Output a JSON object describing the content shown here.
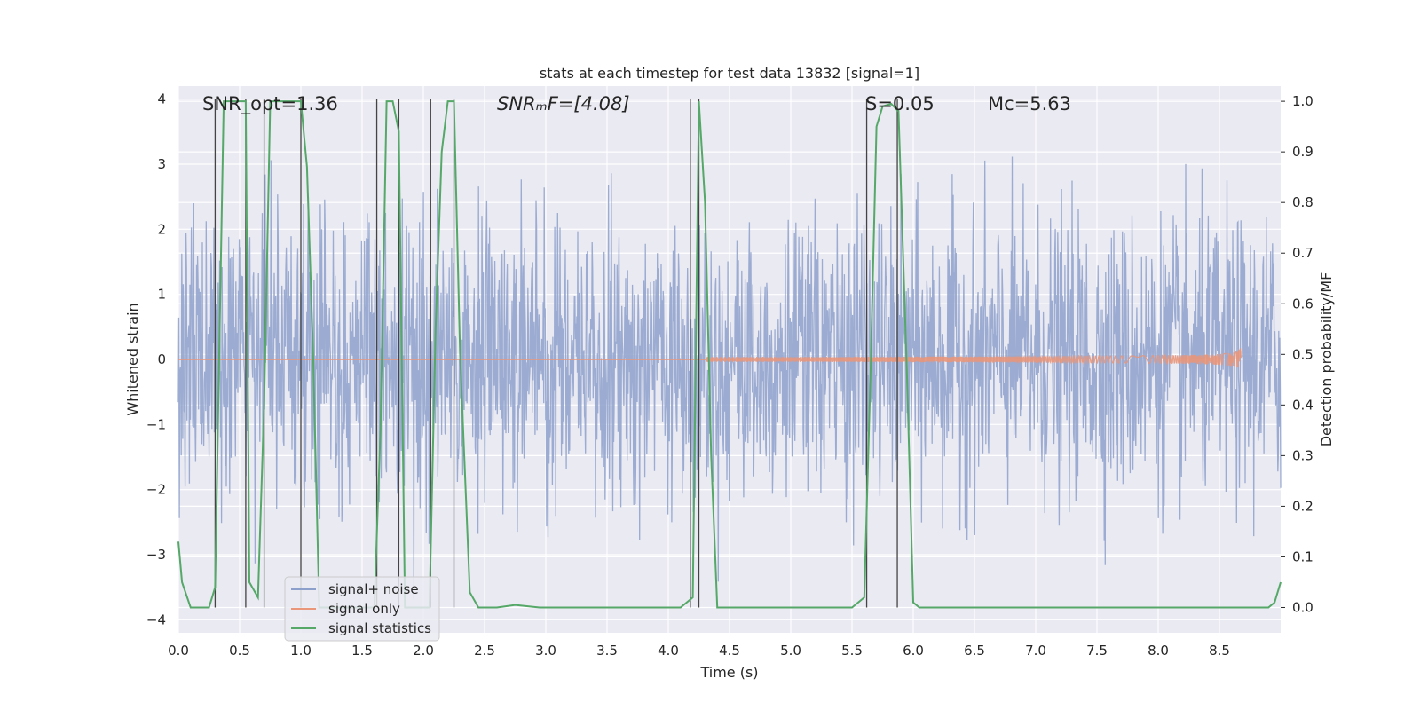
{
  "chart_data": {
    "type": "line",
    "title": "stats at each timestep for test data 13832 [signal=1]",
    "xlabel": "Time (s)",
    "ylabel": "Whitened strain",
    "y2label": "Detection probability/MF",
    "xlim": [
      0.0,
      9.0
    ],
    "ylim": [
      -4.2,
      4.2
    ],
    "y2lim": [
      -0.05,
      1.03
    ],
    "x_ticks": [
      0.0,
      0.5,
      1.0,
      1.5,
      2.0,
      2.5,
      3.0,
      3.5,
      4.0,
      4.5,
      5.0,
      5.5,
      6.0,
      6.5,
      7.0,
      7.5,
      8.0,
      8.5
    ],
    "x_tick_labels": [
      "0.0",
      "0.5",
      "1.0",
      "1.5",
      "2.0",
      "2.5",
      "3.0",
      "3.5",
      "4.0",
      "4.5",
      "5.0",
      "5.5",
      "6.0",
      "6.5",
      "7.0",
      "7.5",
      "8.0",
      "8.5"
    ],
    "y_ticks": [
      4,
      3,
      2,
      1,
      0,
      -1,
      -2,
      -3,
      -4
    ],
    "y_tick_labels": [
      "4",
      "3",
      "2",
      "1",
      "0",
      "−1",
      "−2",
      "−3",
      "−4"
    ],
    "y2_ticks": [
      1.0,
      0.9,
      0.8,
      0.7,
      0.6,
      0.5,
      0.4,
      0.3,
      0.2,
      0.1,
      0.0
    ],
    "y2_tick_labels": [
      "1.0",
      "0.9",
      "0.8",
      "0.7",
      "0.6",
      "0.5",
      "0.4",
      "0.3",
      "0.2",
      "0.1",
      "0.0"
    ],
    "annotations": [
      {
        "text": "SNR_opt=1.36"
      },
      {
        "text": "SNRₘF=[4.08]"
      },
      {
        "text": "S=0.05"
      },
      {
        "text": "Mᴄ=5.63"
      }
    ],
    "series": [
      {
        "name": "signal+ noise",
        "axis": "left",
        "color": "#8da0cb",
        "kind": "noise",
        "duration": 9.0,
        "sigma": 1.05
      },
      {
        "name": "signal only",
        "axis": "left",
        "color": "#e9967a",
        "kind": "chirp",
        "t_start": 4.3,
        "t_merge": 8.68,
        "max_amp": 0.22
      },
      {
        "name": "signal statistics",
        "axis": "right",
        "color": "#55a868",
        "kind": "line",
        "x": [
          0.0,
          0.03,
          0.1,
          0.25,
          0.3,
          0.33,
          0.37,
          0.4,
          0.55,
          0.58,
          0.65,
          0.7,
          0.75,
          1.0,
          1.05,
          1.1,
          1.15,
          1.6,
          1.65,
          1.7,
          1.75,
          1.8,
          1.85,
          2.05,
          2.1,
          2.15,
          2.2,
          2.25,
          2.3,
          2.38,
          2.45,
          2.5,
          2.6,
          2.75,
          2.95,
          3.3,
          4.1,
          4.2,
          4.25,
          4.3,
          4.35,
          4.4,
          5.5,
          5.6,
          5.65,
          5.7,
          5.75,
          5.82,
          5.88,
          5.95,
          6.0,
          6.05,
          6.3,
          8.9,
          8.95,
          9.0
        ],
        "y": [
          0.13,
          0.05,
          0.0,
          0.0,
          0.04,
          0.45,
          1.0,
          1.0,
          1.0,
          0.05,
          0.02,
          0.4,
          1.0,
          1.0,
          0.87,
          0.5,
          0.0,
          0.0,
          0.35,
          1.0,
          1.0,
          0.94,
          0.0,
          0.0,
          0.55,
          0.9,
          1.0,
          1.0,
          0.5,
          0.03,
          0.0,
          0.0,
          0.0,
          0.005,
          0.0,
          0.0,
          0.0,
          0.02,
          1.0,
          0.8,
          0.3,
          0.0,
          0.0,
          0.02,
          0.45,
          0.95,
          0.99,
          0.995,
          0.98,
          0.45,
          0.01,
          0.0,
          0.0,
          0.0,
          0.01,
          0.05
        ]
      }
    ],
    "vertical_lines": [
      0.3,
      0.55,
      0.7,
      1.0,
      1.62,
      1.8,
      2.06,
      2.25,
      4.18,
      4.25,
      5.62,
      5.87
    ],
    "grid": true,
    "legend_position": "lower-left"
  }
}
